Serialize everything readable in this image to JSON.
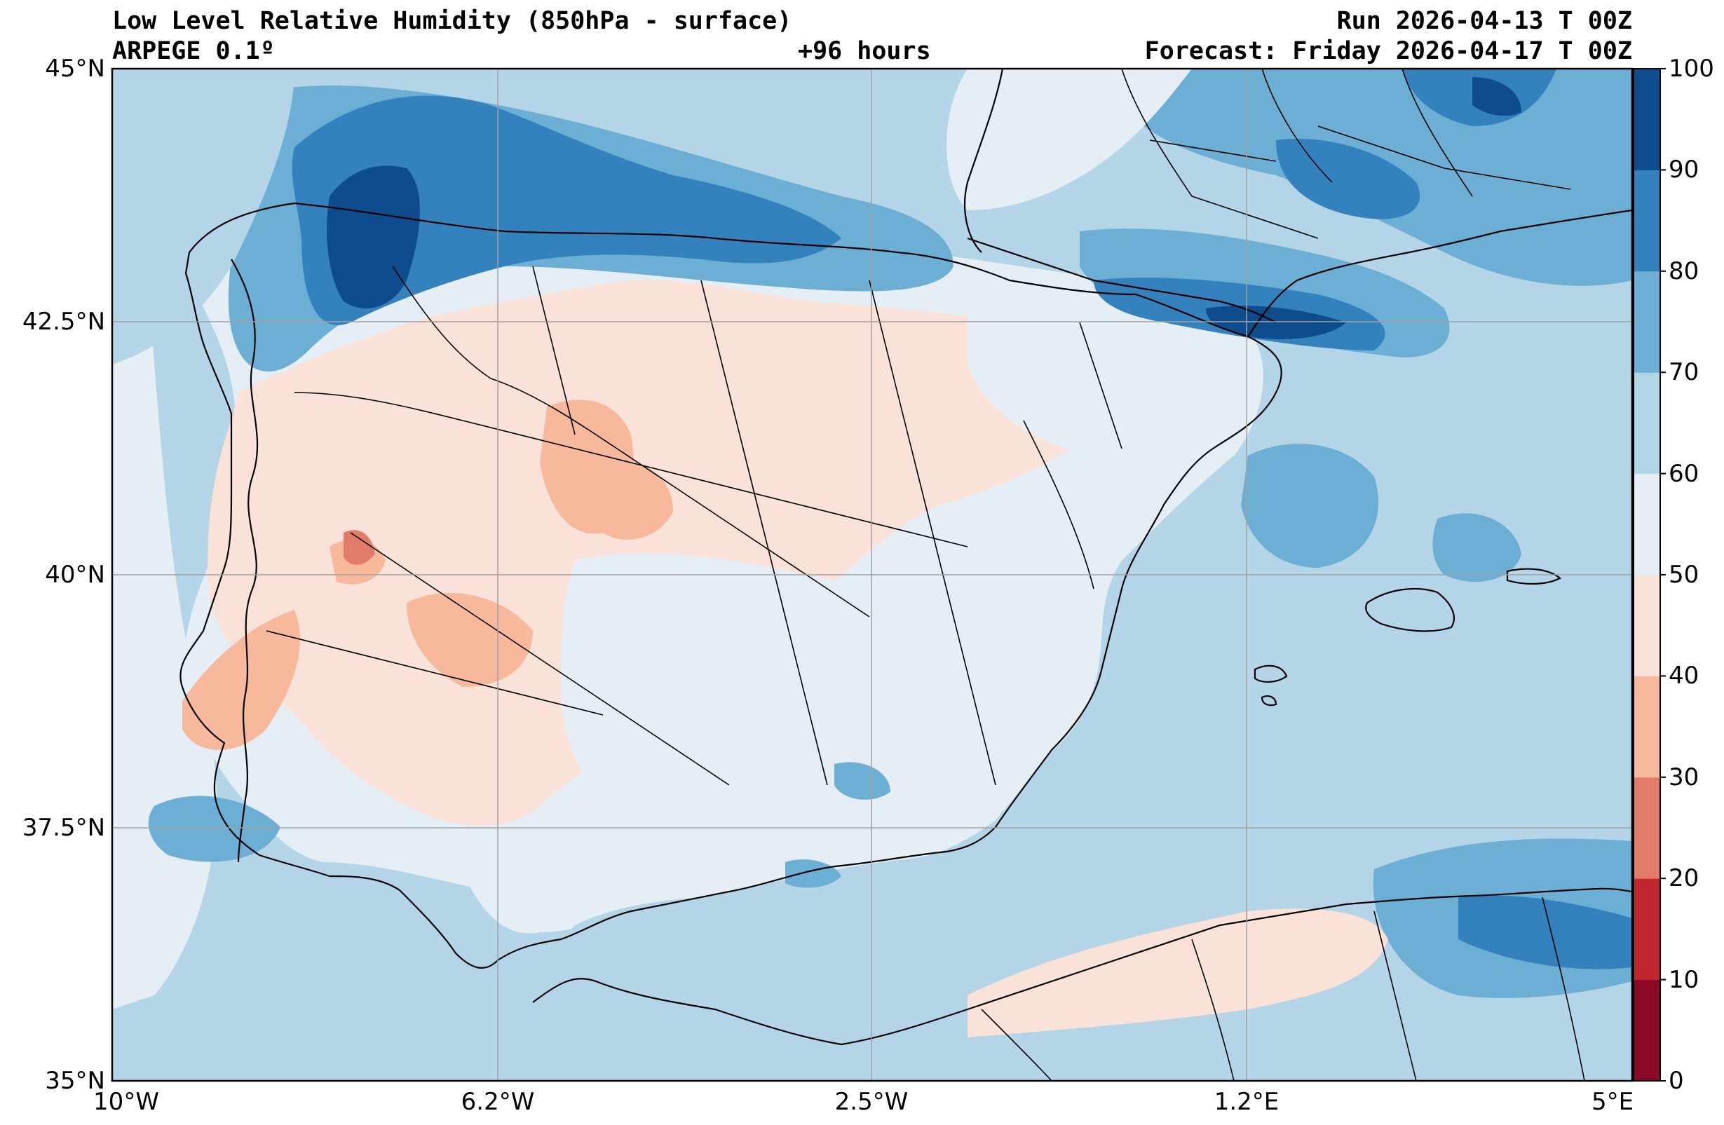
{
  "header": {
    "title": "Low Level Relative Humidity (850hPa - surface)",
    "model": "ARPEGE 0.1º",
    "lead_time": "+96 hours",
    "run": "Run 2026-04-13 T 00Z",
    "forecast": "Forecast: Friday 2026-04-17 T 00Z"
  },
  "axes": {
    "lat_labels": [
      "45°N",
      "42.5°N",
      "40°N",
      "37.5°N",
      "35°N"
    ],
    "lon_labels": [
      "10°W",
      "6.2°W",
      "2.5°W",
      "1.2°E",
      "5°E"
    ]
  },
  "colorbar": {
    "ticks": [
      "100",
      "90",
      "80",
      "70",
      "60",
      "50",
      "40",
      "30",
      "20",
      "10",
      "0"
    ],
    "colors": [
      "#8a0a25",
      "#c0262e",
      "#e27b68",
      "#f7b89c",
      "#fae2d8",
      "#e5edf5",
      "#b2d4e7",
      "#6daed4",
      "#3482bd",
      "#0f4c8d"
    ]
  },
  "palette": {
    "land_base": "#fae7de",
    "sea_base": "#b4d5e8",
    "pale_blue": "#e5edf5",
    "mid_blue": "#6daed4",
    "dark_blue": "#3482bd",
    "deepest_blue": "#0f4c8d",
    "salmon": "#f7b89c",
    "red": "#e27b68"
  }
}
